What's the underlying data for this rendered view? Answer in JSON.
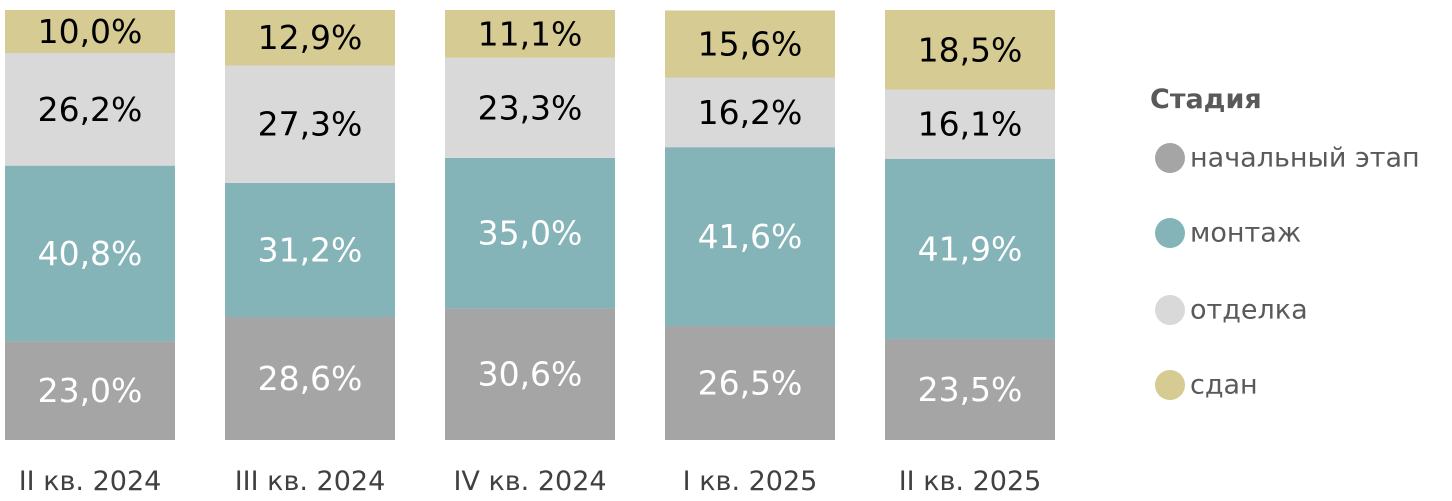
{
  "chart_data": {
    "type": "bar",
    "stacked": true,
    "normalized": true,
    "categories": [
      "II кв. 2024",
      "III кв. 2024",
      "IV кв. 2024",
      "I кв. 2025",
      "II кв. 2025"
    ],
    "series": [
      {
        "name": "начальный этап",
        "color": "#a5a5a5",
        "label_color": "#ffffff",
        "values": [
          23.0,
          28.6,
          30.6,
          26.5,
          23.5
        ],
        "labels": [
          "23,0%",
          "28,6%",
          "30,6%",
          "26,5%",
          "23,5%"
        ]
      },
      {
        "name": "монтаж",
        "color": "#84b3b8",
        "label_color": "#ffffff",
        "values": [
          40.8,
          31.2,
          35.0,
          41.6,
          41.9
        ],
        "labels": [
          "40,8%",
          "31,2%",
          "35,0%",
          "41,6%",
          "41,9%"
        ]
      },
      {
        "name": "отделка",
        "color": "#d9d9d9",
        "label_color": "#000000",
        "values": [
          26.2,
          27.3,
          23.3,
          16.2,
          16.1
        ],
        "labels": [
          "26,2%",
          "27,3%",
          "23,3%",
          "16,2%",
          "16,1%"
        ]
      },
      {
        "name": "сдан",
        "color": "#d5cb93",
        "label_color": "#000000",
        "values": [
          10.0,
          12.9,
          11.1,
          15.6,
          18.5
        ],
        "labels": [
          "10,0%",
          "12,9%",
          "11,1%",
          "15,6%",
          "18,5%"
        ]
      }
    ],
    "ylim": [
      0,
      100
    ],
    "grid": false,
    "legend": {
      "title": "Стадия",
      "placement": "right"
    }
  }
}
